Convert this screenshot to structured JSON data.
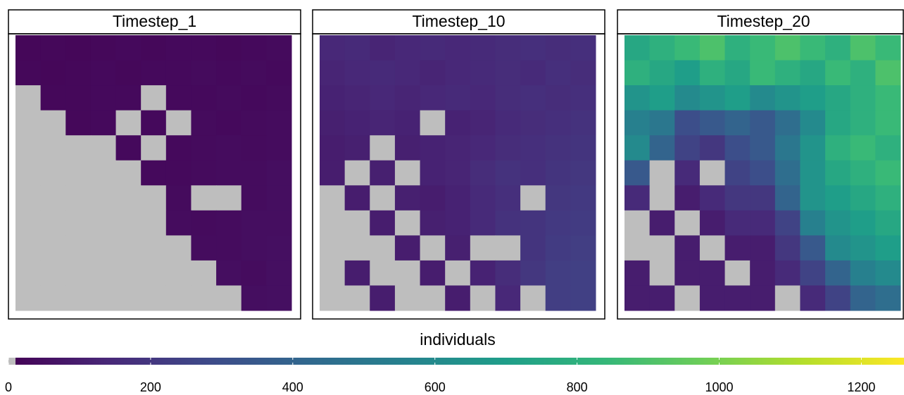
{
  "chart_data": {
    "type": "heatmap",
    "colormap": "viridis",
    "na_color": "#bebebe",
    "legend_title": "individuals",
    "clim": [
      0,
      1260
    ],
    "cticks": [
      0,
      200,
      400,
      600,
      800,
      1000,
      1200
    ],
    "panels": [
      {
        "title": "Timestep_1",
        "values": [
          [
            20,
            25,
            20,
            25,
            30,
            25,
            30,
            30,
            25,
            30,
            35
          ],
          [
            25,
            20,
            25,
            30,
            25,
            30,
            30,
            35,
            30,
            35,
            30
          ],
          [
            null,
            25,
            25,
            30,
            30,
            null,
            30,
            30,
            35,
            30,
            35
          ],
          [
            null,
            null,
            25,
            30,
            null,
            30,
            null,
            35,
            30,
            35,
            40
          ],
          [
            null,
            null,
            null,
            null,
            30,
            null,
            30,
            35,
            40,
            35,
            40
          ],
          [
            null,
            null,
            null,
            null,
            null,
            30,
            30,
            35,
            40,
            40,
            45
          ],
          [
            null,
            null,
            null,
            null,
            null,
            null,
            35,
            null,
            null,
            40,
            45
          ],
          [
            null,
            null,
            null,
            null,
            null,
            null,
            40,
            35,
            40,
            45,
            45
          ],
          [
            null,
            null,
            null,
            null,
            null,
            null,
            null,
            40,
            40,
            45,
            50
          ],
          [
            null,
            null,
            null,
            null,
            null,
            null,
            null,
            null,
            45,
            40,
            50
          ],
          [
            null,
            null,
            null,
            null,
            null,
            null,
            null,
            null,
            null,
            45,
            50
          ]
        ]
      },
      {
        "title": "Timestep_10",
        "values": [
          [
            140,
            150,
            130,
            140,
            150,
            140,
            150,
            160,
            170,
            160,
            170
          ],
          [
            130,
            140,
            150,
            140,
            130,
            140,
            150,
            160,
            150,
            170,
            160
          ],
          [
            120,
            130,
            140,
            130,
            140,
            150,
            140,
            160,
            170,
            160,
            170
          ],
          [
            110,
            120,
            130,
            120,
            null,
            120,
            130,
            150,
            160,
            170,
            180
          ],
          [
            100,
            110,
            null,
            110,
            120,
            130,
            140,
            160,
            170,
            180,
            190
          ],
          [
            100,
            null,
            110,
            null,
            120,
            130,
            160,
            180,
            170,
            190,
            200
          ],
          [
            null,
            100,
            null,
            110,
            100,
            120,
            150,
            170,
            null,
            200,
            210
          ],
          [
            null,
            null,
            100,
            null,
            110,
            120,
            150,
            180,
            190,
            210,
            220
          ],
          [
            null,
            null,
            null,
            100,
            null,
            110,
            null,
            null,
            190,
            220,
            230
          ],
          [
            null,
            100,
            null,
            null,
            100,
            null,
            120,
            160,
            200,
            230,
            240
          ],
          [
            null,
            null,
            100,
            null,
            null,
            100,
            null,
            140,
            null,
            230,
            240
          ]
        ]
      },
      {
        "title": "Timestep_20",
        "values": [
          [
            750,
            800,
            850,
            900,
            800,
            850,
            900,
            850,
            800,
            900,
            850
          ],
          [
            800,
            750,
            700,
            800,
            750,
            850,
            800,
            750,
            850,
            800,
            900
          ],
          [
            650,
            700,
            600,
            650,
            700,
            600,
            650,
            700,
            750,
            800,
            850
          ],
          [
            550,
            500,
            300,
            350,
            400,
            350,
            450,
            600,
            750,
            800,
            850
          ],
          [
            600,
            400,
            250,
            200,
            300,
            350,
            500,
            650,
            800,
            850,
            800
          ],
          [
            350,
            null,
            150,
            null,
            250,
            300,
            450,
            650,
            750,
            800,
            850
          ],
          [
            150,
            null,
            100,
            150,
            200,
            200,
            400,
            650,
            700,
            750,
            800
          ],
          [
            null,
            100,
            null,
            100,
            150,
            150,
            250,
            550,
            650,
            700,
            750
          ],
          [
            null,
            null,
            100,
            null,
            100,
            100,
            200,
            350,
            600,
            650,
            700
          ],
          [
            100,
            null,
            100,
            100,
            null,
            100,
            150,
            250,
            400,
            550,
            600
          ],
          [
            100,
            100,
            null,
            100,
            100,
            100,
            null,
            150,
            250,
            400,
            450
          ]
        ]
      }
    ]
  }
}
